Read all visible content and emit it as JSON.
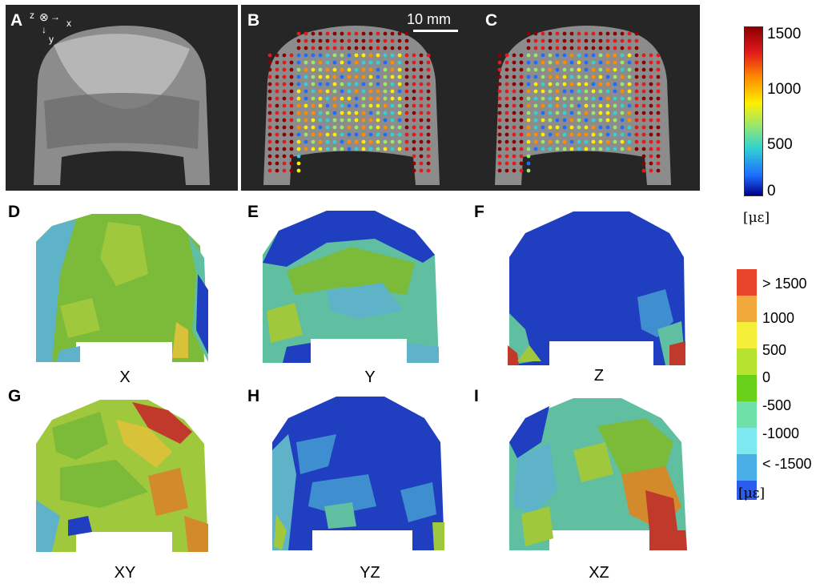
{
  "panels": {
    "A": "A",
    "B": "B",
    "C": "C",
    "D": "D",
    "E": "E",
    "F": "F",
    "G": "G",
    "H": "H",
    "I": "I"
  },
  "axes_glyph": {
    "z": "z",
    "x": "x",
    "y": "y"
  },
  "scale_bar": "10 mm",
  "captions": {
    "D": "X",
    "E": "Y",
    "F": "Z",
    "G": "XY",
    "H": "YZ",
    "I": "XZ"
  },
  "continuous_colorbar": {
    "ticks": [
      "1500",
      "1000",
      "500",
      "0"
    ],
    "unit": "[με]",
    "colors": [
      "#8b0000",
      "#e31a1c",
      "#ff8c00",
      "#ffee00",
      "#9be86a",
      "#30d2d2",
      "#1e6dff",
      "#00008b"
    ]
  },
  "discrete_legend": {
    "labels": [
      "> 1500",
      "1000",
      "500",
      "0",
      "-500",
      "-1000",
      "< -1500"
    ],
    "colors": [
      "#e8452a",
      "#f2a93b",
      "#f5ef3a",
      "#b6e230",
      "#69d11a",
      "#6fe0a8",
      "#7ee8f0",
      "#4aaee6",
      "#2b5cf0"
    ],
    "unit": "[με]"
  },
  "palette": {
    "dark_red": "#c0392b",
    "orange": "#d28a2a",
    "yellow": "#d8c23a",
    "light_green": "#a0c83c",
    "green": "#7cba3a",
    "teal": "#5fbfa0",
    "cyan": "#5fb3c8",
    "blue": "#3f8fd0",
    "dark_blue": "#1f3fc0"
  }
}
